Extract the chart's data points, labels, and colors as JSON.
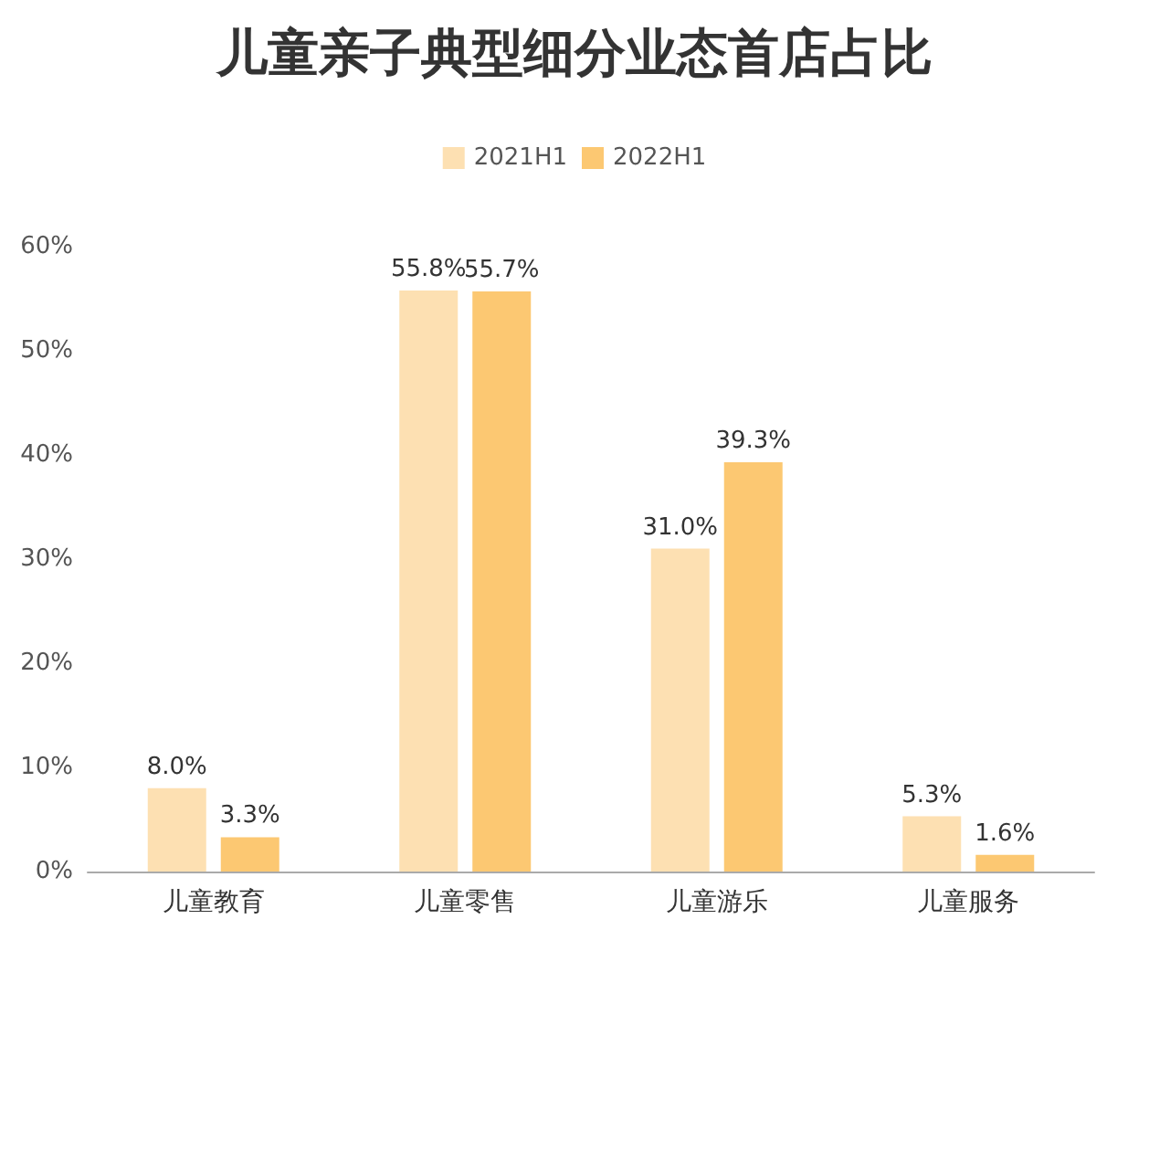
{
  "chart_data": {
    "type": "bar",
    "title": "儿童亲子典型细分业态首店占比",
    "categories": [
      "儿童教育",
      "儿童零售",
      "儿童游乐",
      "儿童服务"
    ],
    "series": [
      {
        "name": "2021H1",
        "color": "#fde0b2",
        "values": [
          8.0,
          55.8,
          31.0,
          5.3
        ],
        "value_labels": [
          "8.0%",
          "55.8%",
          "31.0%",
          "5.3%"
        ]
      },
      {
        "name": "2022H1",
        "color": "#fcc872",
        "values": [
          3.3,
          55.7,
          39.3,
          1.6
        ],
        "value_labels": [
          "3.3%",
          "55.7%",
          "39.3%",
          "1.6%"
        ]
      }
    ],
    "ylim": [
      0,
      60
    ],
    "yticks": [
      {
        "value": 0,
        "label": "0%"
      },
      {
        "value": 10,
        "label": "10%"
      },
      {
        "value": 20,
        "label": "20%"
      },
      {
        "value": 30,
        "label": "30%"
      },
      {
        "value": 40,
        "label": "40%"
      },
      {
        "value": 50,
        "label": "50%"
      },
      {
        "value": 60,
        "label": "60%"
      }
    ],
    "grid": false,
    "legend": "top"
  }
}
